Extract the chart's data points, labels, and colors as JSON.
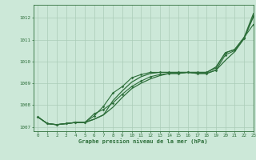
{
  "title": "Graphe pression niveau de la mer (hPa)",
  "bg_color": "#cce8d8",
  "grid_color": "#aaccb8",
  "line_color": "#2d6e3a",
  "xlim": [
    -0.5,
    23
  ],
  "ylim": [
    1006.8,
    1012.6
  ],
  "yticks": [
    1007,
    1008,
    1009,
    1010,
    1011,
    1012
  ],
  "xticks": [
    0,
    1,
    2,
    3,
    4,
    5,
    6,
    7,
    8,
    9,
    10,
    11,
    12,
    13,
    14,
    15,
    16,
    17,
    18,
    19,
    20,
    21,
    22,
    23
  ],
  "series": {
    "line_smooth_top": [
      1007.45,
      1007.15,
      1007.1,
      1007.15,
      1007.2,
      1007.2,
      1007.35,
      1007.55,
      1008.2,
      1008.65,
      1009.05,
      1009.3,
      1009.45,
      1009.5,
      1009.5,
      1009.5,
      1009.5,
      1009.5,
      1009.5,
      1009.75,
      1010.4,
      1010.55,
      1011.1,
      1012.2
    ],
    "line_smooth_mid": [
      1007.45,
      1007.15,
      1007.1,
      1007.15,
      1007.2,
      1007.2,
      1007.35,
      1007.55,
      1007.9,
      1008.35,
      1008.75,
      1009.0,
      1009.2,
      1009.35,
      1009.45,
      1009.45,
      1009.5,
      1009.45,
      1009.45,
      1009.6,
      1010.05,
      1010.45,
      1011.05,
      1012.05
    ],
    "line_marker1": [
      1007.45,
      1007.15,
      1007.1,
      1007.15,
      1007.2,
      1007.2,
      1007.6,
      1007.8,
      1008.1,
      1008.5,
      1008.85,
      1009.1,
      1009.3,
      1009.4,
      1009.45,
      1009.45,
      1009.5,
      1009.45,
      1009.45,
      1009.6,
      1010.3,
      1010.5,
      1011.05,
      1012.1
    ],
    "line_marker2": [
      1007.45,
      1007.15,
      1007.1,
      1007.15,
      1007.2,
      1007.2,
      1007.5,
      1007.95,
      1008.55,
      1008.85,
      1009.25,
      1009.4,
      1009.5,
      1009.5,
      1009.5,
      1009.5,
      1009.5,
      1009.5,
      1009.5,
      1009.7,
      1010.4,
      1010.55,
      1011.1,
      1011.7
    ]
  }
}
